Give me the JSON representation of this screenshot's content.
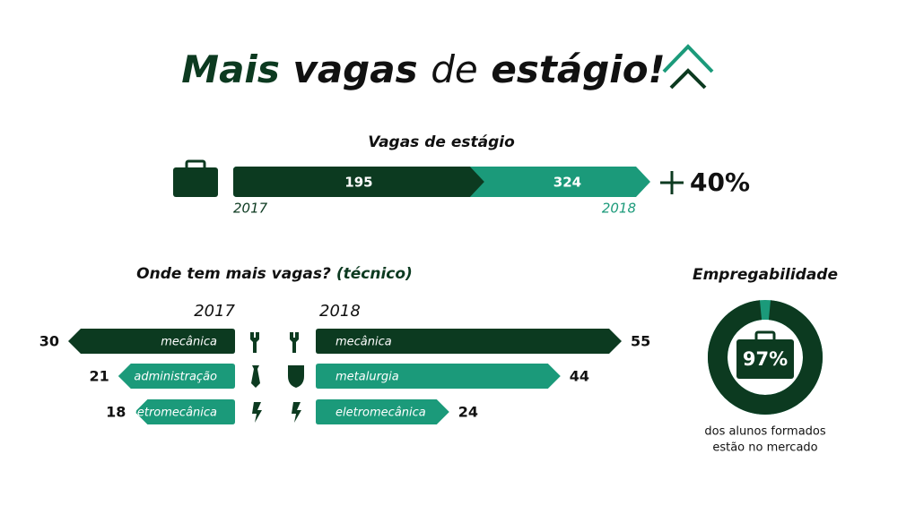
{
  "header": {
    "title": [
      "Mais",
      "vagas",
      "de",
      "estágio!"
    ]
  },
  "chart_data": [
    {
      "type": "bar",
      "title": "Vagas de estágio",
      "series": [
        {
          "name": "2017",
          "color": "#0c3a20",
          "values": [
            195
          ]
        },
        {
          "name": "2018",
          "color": "#1b9a7a",
          "values": [
            324
          ]
        }
      ],
      "annotation": "40%"
    },
    {
      "type": "butterfly",
      "title": "Onde tem mais vagas?",
      "subtitle": "(técnico)",
      "left": {
        "name": "2017",
        "categories": [
          "mecânica",
          "administração",
          "eletromecânica"
        ],
        "values": [
          30,
          21,
          18
        ],
        "colors": [
          "#0c3a20",
          "#1b9a7a",
          "#1b9a7a"
        ]
      },
      "right": {
        "name": "2018",
        "categories": [
          "mecânica",
          "metalurgia",
          "eletromecânica"
        ],
        "values": [
          55,
          44,
          24
        ],
        "colors": [
          "#0c3a20",
          "#1b9a7a",
          "#1b9a7a"
        ]
      }
    },
    {
      "type": "donut",
      "title": "Empregabilidade",
      "values": [
        97
      ],
      "value_labels": [
        "97%"
      ],
      "caption": [
        "dos alunos formados",
        "estão no mercado"
      ],
      "color": "#0c3a20",
      "accent": "#1b9a7a"
    }
  ]
}
